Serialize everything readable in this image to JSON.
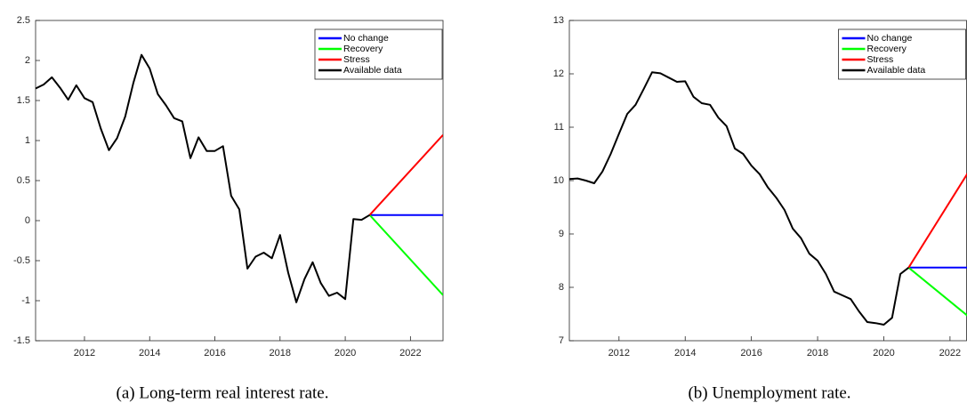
{
  "chart_data": [
    {
      "type": "line",
      "caption": "(a) Long-term real interest rate.",
      "xlim": [
        2010.5,
        2023
      ],
      "xticks": [
        2012,
        2014,
        2016,
        2018,
        2020,
        2022
      ],
      "ylim": [
        -1.5,
        2.5
      ],
      "yticks": [
        -1.5,
        -1,
        -0.5,
        0,
        0.5,
        1,
        1.5,
        2,
        2.5
      ],
      "legend": "upper right",
      "series": [
        {
          "name": "No change",
          "color": "#0000ff",
          "x": [
            2020.75,
            2023
          ],
          "values": [
            0.07,
            0.07
          ]
        },
        {
          "name": "Recovery",
          "color": "#00ff00",
          "x": [
            2020.75,
            2023
          ],
          "values": [
            0.07,
            -0.93
          ]
        },
        {
          "name": "Stress",
          "color": "#ff0000",
          "x": [
            2020.75,
            2023
          ],
          "values": [
            0.07,
            1.07
          ]
        },
        {
          "name": "Available data",
          "color": "#000000",
          "x": [
            2010.5,
            2010.75,
            2011,
            2011.25,
            2011.5,
            2011.75,
            2012,
            2012.25,
            2012.5,
            2012.75,
            2013,
            2013.25,
            2013.5,
            2013.75,
            2014,
            2014.25,
            2014.5,
            2014.75,
            2015,
            2015.25,
            2015.5,
            2015.75,
            2016,
            2016.25,
            2016.5,
            2016.75,
            2017,
            2017.25,
            2017.5,
            2017.75,
            2018,
            2018.25,
            2018.5,
            2018.75,
            2019,
            2019.25,
            2019.5,
            2019.75,
            2020,
            2020.25,
            2020.5,
            2020.75
          ],
          "values": [
            1.65,
            1.7,
            1.79,
            1.66,
            1.51,
            1.69,
            1.53,
            1.48,
            1.15,
            0.88,
            1.03,
            1.3,
            1.72,
            2.07,
            1.9,
            1.58,
            1.44,
            1.28,
            1.24,
            0.78,
            1.04,
            0.87,
            0.87,
            0.93,
            0.31,
            0.14,
            -0.6,
            -0.45,
            -0.4,
            -0.47,
            -0.18,
            -0.65,
            -1.02,
            -0.73,
            -0.52,
            -0.78,
            -0.94,
            -0.9,
            -0.98,
            0.02,
            0.01,
            0.07
          ]
        }
      ]
    },
    {
      "type": "line",
      "caption": "(b) Unemployment rate.",
      "xlim": [
        2010.5,
        2022.5
      ],
      "xticks": [
        2012,
        2014,
        2016,
        2018,
        2020,
        2022
      ],
      "ylim": [
        7,
        13
      ],
      "yticks": [
        7,
        8,
        9,
        10,
        11,
        12,
        13
      ],
      "legend": "upper right",
      "series": [
        {
          "name": "No change",
          "color": "#0000ff",
          "x": [
            2020.75,
            2023
          ],
          "values": [
            8.37,
            8.37
          ]
        },
        {
          "name": "Recovery",
          "color": "#00ff00",
          "x": [
            2020.75,
            2023
          ],
          "values": [
            8.37,
            7.23
          ]
        },
        {
          "name": "Stress",
          "color": "#ff0000",
          "x": [
            2020.75,
            2023
          ],
          "values": [
            8.37,
            10.6
          ]
        },
        {
          "name": "Available data",
          "color": "#000000",
          "x": [
            2010.5,
            2010.75,
            2011,
            2011.25,
            2011.5,
            2011.75,
            2012,
            2012.25,
            2012.5,
            2012.75,
            2013,
            2013.25,
            2013.5,
            2013.75,
            2014,
            2014.25,
            2014.5,
            2014.75,
            2015,
            2015.25,
            2015.5,
            2015.75,
            2016,
            2016.25,
            2016.5,
            2016.75,
            2017,
            2017.25,
            2017.5,
            2017.75,
            2018,
            2018.25,
            2018.5,
            2018.75,
            2019,
            2019.25,
            2019.5,
            2019.75,
            2020,
            2020.25,
            2020.5,
            2020.75
          ],
          "values": [
            10.03,
            10.04,
            10.0,
            9.95,
            10.17,
            10.5,
            10.88,
            11.25,
            11.42,
            11.72,
            12.03,
            12.01,
            11.93,
            11.85,
            11.86,
            11.57,
            11.45,
            11.42,
            11.18,
            11.02,
            10.6,
            10.5,
            10.28,
            10.12,
            9.87,
            9.68,
            9.45,
            9.1,
            8.92,
            8.63,
            8.5,
            8.25,
            7.92,
            7.85,
            7.78,
            7.55,
            7.35,
            7.33,
            7.3,
            7.43,
            8.25,
            8.37
          ]
        }
      ]
    }
  ]
}
